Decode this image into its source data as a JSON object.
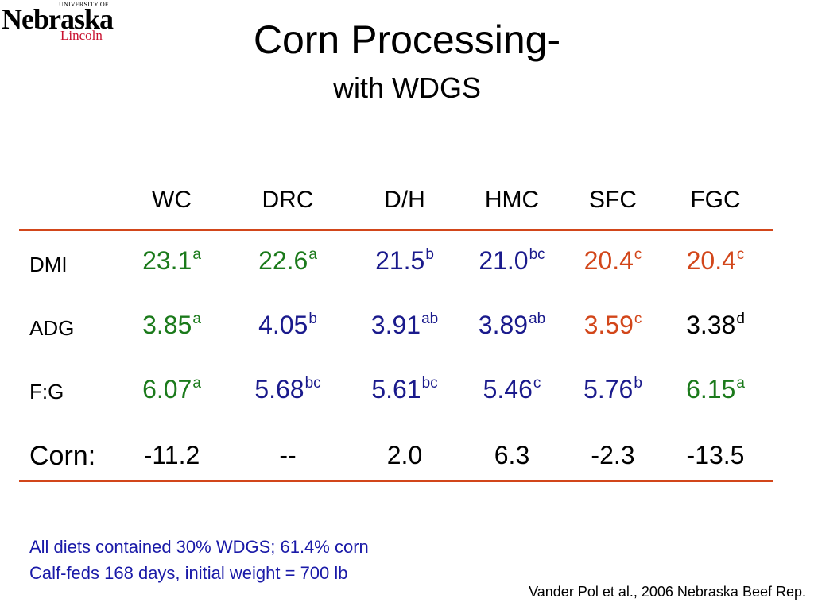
{
  "logo": {
    "university_of": "UNIVERSITY OF",
    "nebraska": "Nebraska",
    "lincoln": "Lincoln"
  },
  "title": "Corn Processing-",
  "subtitle": "with WDGS",
  "table": {
    "columns": [
      "WC",
      "DRC",
      "D/H",
      "HMC",
      "SFC",
      "FGC"
    ],
    "rows": [
      {
        "label": "DMI",
        "cells": [
          {
            "value": "23.1",
            "sup": "a",
            "color": "#1b7a1b"
          },
          {
            "value": "22.6",
            "sup": "a",
            "color": "#1b7a1b"
          },
          {
            "value": "21.5",
            "sup": "b",
            "color": "#1a1a8c"
          },
          {
            "value": "21.0",
            "sup": "bc",
            "color": "#1a1a8c"
          },
          {
            "value": "20.4",
            "sup": "c",
            "color": "#d2461a"
          },
          {
            "value": "20.4",
            "sup": "c",
            "color": "#d2461a"
          }
        ]
      },
      {
        "label": "ADG",
        "cells": [
          {
            "value": "3.85",
            "sup": "a",
            "color": "#1b7a1b"
          },
          {
            "value": "4.05",
            "sup": "b",
            "color": "#1a1a8c"
          },
          {
            "value": "3.91",
            "sup": "ab",
            "color": "#1a1a8c"
          },
          {
            "value": "3.89",
            "sup": "ab",
            "color": "#1a1a8c"
          },
          {
            "value": "3.59",
            "sup": "c",
            "color": "#d2461a"
          },
          {
            "value": "3.38",
            "sup": "d",
            "color": "#000000"
          }
        ]
      },
      {
        "label": "F:G",
        "cells": [
          {
            "value": "6.07",
            "sup": "a",
            "color": "#1b7a1b"
          },
          {
            "value": "5.68",
            "sup": "bc",
            "color": "#1a1a8c"
          },
          {
            "value": "5.61",
            "sup": "bc",
            "color": "#1a1a8c"
          },
          {
            "value": "5.46",
            "sup": "c",
            "color": "#1a1a8c"
          },
          {
            "value": "5.76",
            "sup": "b",
            "color": "#1a1a8c"
          },
          {
            "value": "6.15",
            "sup": "a",
            "color": "#1b7a1b"
          }
        ]
      },
      {
        "label": "Corn:",
        "cells": [
          {
            "value": "-11.2",
            "sup": "",
            "color": "#000000"
          },
          {
            "value": "--",
            "sup": "",
            "color": "#000000"
          },
          {
            "value": "2.0",
            "sup": "",
            "color": "#000000"
          },
          {
            "value": "6.3",
            "sup": "",
            "color": "#000000"
          },
          {
            "value": "-2.3",
            "sup": "",
            "color": "#000000"
          },
          {
            "value": "-13.5",
            "sup": "",
            "color": "#000000"
          }
        ]
      }
    ]
  },
  "notes": {
    "line1": "All diets contained 30% WDGS; 61.4% corn",
    "line2": "Calf-feds 168 days, initial weight = 700 lb"
  },
  "citation": "Vander Pol et al., 2006 Nebraska Beef Rep.",
  "colors": {
    "rule": "#d2461a",
    "note": "#1a1aa8"
  }
}
